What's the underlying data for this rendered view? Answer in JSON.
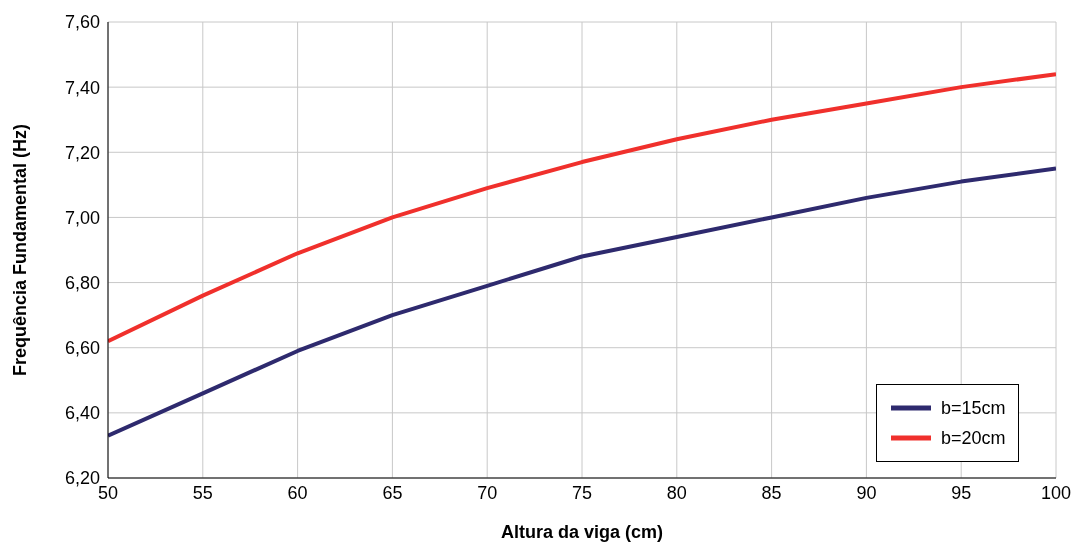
{
  "chart_data": {
    "type": "line",
    "xlabel": "Altura da viga (cm)",
    "ylabel": "Frequência Fundamental (Hz)",
    "x": [
      50,
      55,
      60,
      65,
      70,
      75,
      80,
      85,
      90,
      95,
      100
    ],
    "series": [
      {
        "name": "b=15cm",
        "color": "#2e2a6e",
        "values": [
          6.33,
          6.46,
          6.59,
          6.7,
          6.79,
          6.88,
          6.94,
          7.0,
          7.06,
          7.11,
          7.15
        ]
      },
      {
        "name": "b=20cm",
        "color": "#f0302c",
        "values": [
          6.62,
          6.76,
          6.89,
          7.0,
          7.09,
          7.17,
          7.24,
          7.3,
          7.35,
          7.4,
          7.44
        ]
      }
    ],
    "xlim": [
      50,
      100
    ],
    "xticks": [
      50,
      55,
      60,
      65,
      70,
      75,
      80,
      85,
      90,
      95,
      100
    ],
    "ylim": [
      6.2,
      7.6
    ],
    "yticks": [
      {
        "value": 6.2,
        "label": "6,20"
      },
      {
        "value": 6.4,
        "label": "6,40"
      },
      {
        "value": 6.6,
        "label": "6,60"
      },
      {
        "value": 6.8,
        "label": "6,80"
      },
      {
        "value": 7.0,
        "label": "7,00"
      },
      {
        "value": 7.2,
        "label": "7,20"
      },
      {
        "value": 7.4,
        "label": "7,40"
      },
      {
        "value": 7.6,
        "label": "7,60"
      }
    ],
    "grid": true,
    "legend": "bottom right",
    "marker": "none",
    "line_style": "solid"
  }
}
